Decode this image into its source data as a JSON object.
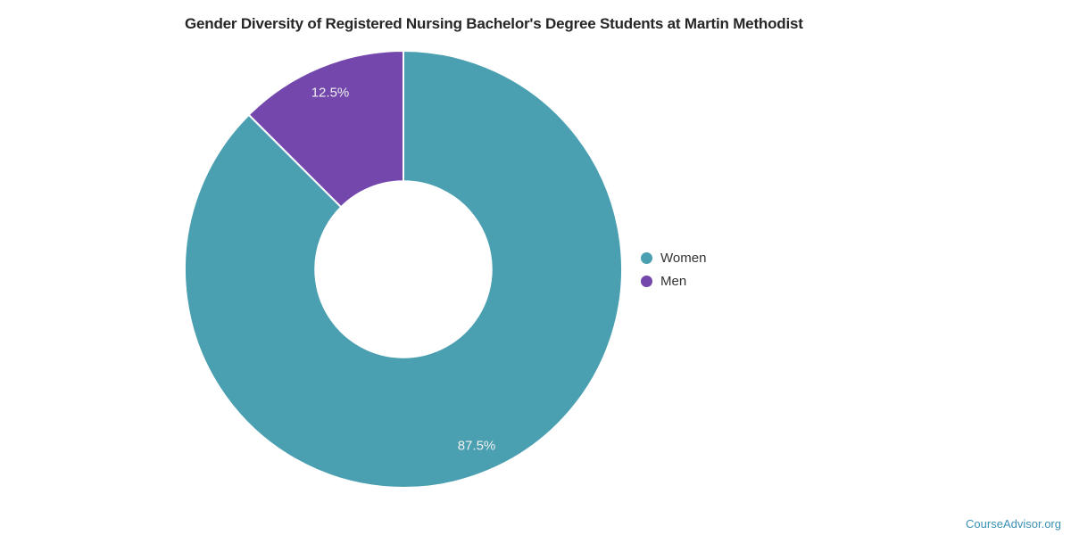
{
  "page": {
    "background": "#ffffff"
  },
  "chart_data": {
    "type": "pie",
    "donut": true,
    "title": "Gender Diversity of Registered Nursing Bachelor's Degree Students at Martin Methodist",
    "categories": [
      "Women",
      "Men"
    ],
    "values": [
      87.5,
      12.5
    ],
    "series": [
      {
        "name": "Women",
        "value": 87.5,
        "label": "87.5%",
        "color": "#4A9FB0"
      },
      {
        "name": "Men",
        "value": 12.5,
        "label": "12.5%",
        "color": "#7347AC"
      }
    ],
    "start_angle_deg": 0,
    "direction": "clockwise",
    "inner_radius_ratio": 0.403,
    "slice_border_color": "#FFFFFF",
    "data_label_color": "#F0F0F0",
    "legend_position": "right",
    "legend_text_color": "#333333",
    "grid": "off",
    "xlabel": "",
    "ylabel": ""
  },
  "footer": {
    "brand": "CourseAdvisor.org",
    "color": "#3A91B4"
  },
  "colors": {
    "title": "#262626"
  }
}
